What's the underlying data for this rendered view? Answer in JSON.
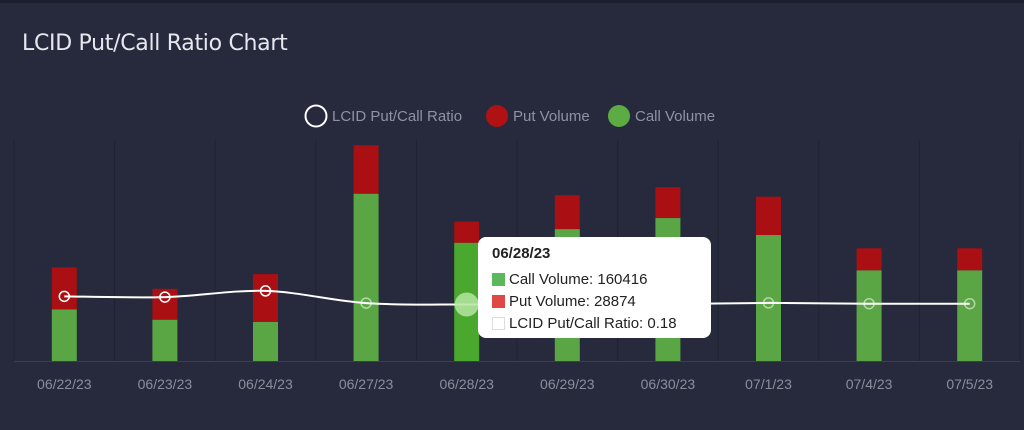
{
  "title": "LCID Put/Call Ratio Chart",
  "legend": [
    {
      "name": "LCID Put/Call Ratio",
      "icon": "hollow-circle-icon",
      "color": "#ffffff"
    },
    {
      "name": "Put Volume",
      "icon": "red-circle-icon",
      "color": "#b01214"
    },
    {
      "name": "Call Volume",
      "icon": "green-circle-icon",
      "color": "#5cab43"
    }
  ],
  "colors": {
    "background": "#262a3c",
    "put": "#a90f13",
    "call": "#5ba644",
    "call_highlight": "#4aa82e",
    "ratio_line": "#ffffff",
    "axis_text": "#8a8e9c"
  },
  "tooltip": {
    "date": "06/28/23",
    "rows": [
      {
        "label": "Call Volume: 160416",
        "color": "#5cb85c"
      },
      {
        "label": "Put Volume: 28874",
        "color": "#e04848"
      },
      {
        "label": "LCID Put/Call Ratio: 0.18",
        "color": "#ffffff"
      }
    ]
  },
  "chart_data": {
    "type": "bar",
    "stacked": true,
    "categories": [
      "06/22/23",
      "06/23/23",
      "06/24/23",
      "06/27/23",
      "06/28/23",
      "06/29/23",
      "06/30/23",
      "07/1/23",
      "07/4/23",
      "07/5/23"
    ],
    "series": [
      {
        "name": "Call Volume",
        "values": [
          70000,
          56000,
          53000,
          227000,
          160416,
          179000,
          194000,
          171000,
          123000,
          123000
        ]
      },
      {
        "name": "Put Volume",
        "values": [
          57000,
          42000,
          65000,
          66000,
          28874,
          46000,
          42000,
          52000,
          30000,
          30000
        ]
      },
      {
        "name": "LCID Put/Call Ratio",
        "values": [
          0.81,
          0.75,
          1.23,
          0.29,
          0.18,
          0.26,
          0.22,
          0.3,
          0.24,
          0.24
        ]
      }
    ],
    "ylim": [
      0,
      300000
    ],
    "ratio_ylim": [
      -4.19,
      12.9
    ],
    "highlighted": "06/28/23",
    "grid": "vertical",
    "legend_position": "top-center"
  }
}
